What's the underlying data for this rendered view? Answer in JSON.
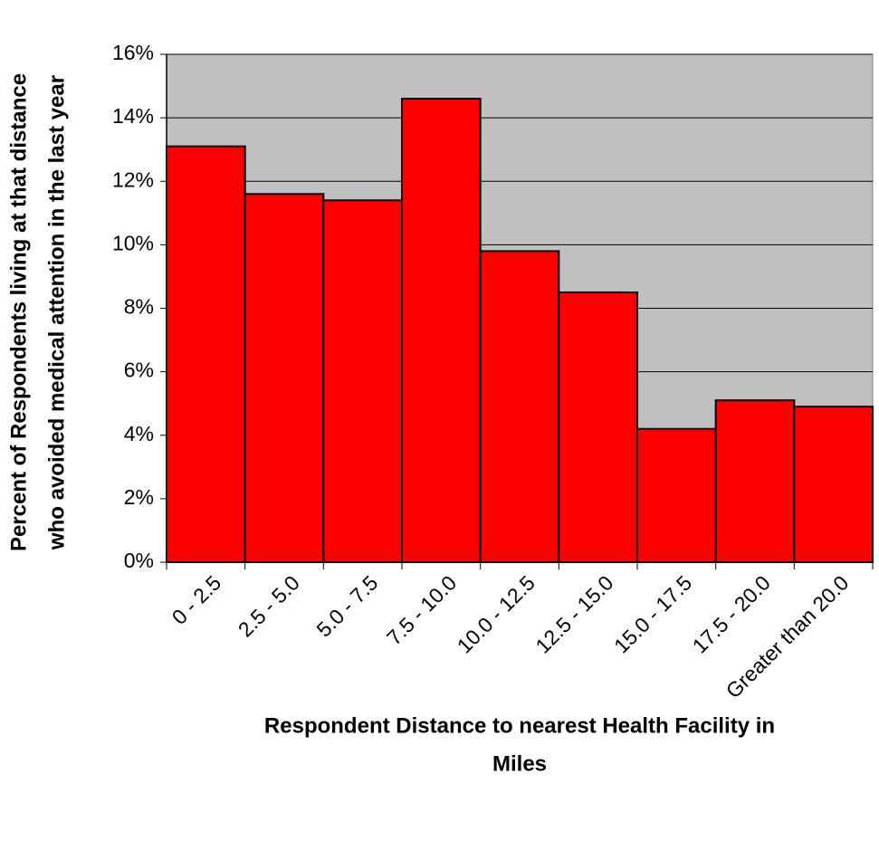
{
  "chart_data": {
    "type": "bar",
    "x_label": [
      "Respondent Distance to nearest Health Facility in",
      "Miles"
    ],
    "y_label": [
      "Percent of Respondents living at that distance",
      "who avoided medical attention in the last year"
    ],
    "categories": [
      "0 - 2.5",
      "2.5 - 5.0",
      "5.0 - 7.5",
      "7.5 - 10.0",
      "10.0 - 12.5",
      "12.5 - 15.0",
      "15.0 - 17.5",
      "17.5 - 20.0",
      "Greater than 20.0"
    ],
    "values": [
      13.1,
      11.6,
      11.4,
      14.6,
      9.8,
      8.5,
      4.2,
      5.1,
      4.9
    ],
    "color": "#ff0000",
    "plot_background": "#c0c0c0",
    "ylim": [
      0,
      16
    ],
    "yticks": [
      {
        "value": 0,
        "label": "0%"
      },
      {
        "value": 2,
        "label": "2%"
      },
      {
        "value": 4,
        "label": "4%"
      },
      {
        "value": 6,
        "label": "6%"
      },
      {
        "value": 8,
        "label": "8%"
      },
      {
        "value": 10,
        "label": "10%"
      },
      {
        "value": 12,
        "label": "12%"
      },
      {
        "value": 14,
        "label": "14%"
      },
      {
        "value": 16,
        "label": "16%"
      }
    ],
    "grid": true
  }
}
